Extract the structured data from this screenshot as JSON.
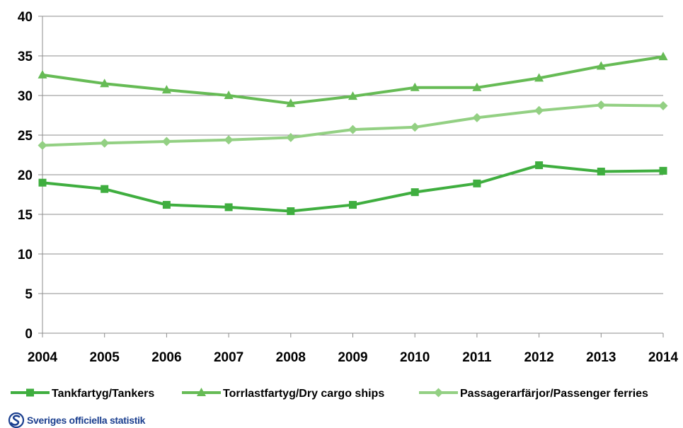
{
  "chart_data": {
    "type": "line",
    "categories": [
      "2004",
      "2005",
      "2006",
      "2007",
      "2008",
      "2009",
      "2010",
      "2011",
      "2012",
      "2013",
      "2014"
    ],
    "ylim": [
      0,
      40
    ],
    "yticks": [
      "0",
      "5",
      "10",
      "15",
      "20",
      "25",
      "30",
      "35",
      "40"
    ],
    "grid": true,
    "legend_position": "bottom",
    "series": [
      {
        "name": "Tankfartyg/Tankers",
        "color": "#3fae3f",
        "marker": "square",
        "values": [
          19.0,
          18.2,
          16.2,
          15.9,
          15.4,
          16.2,
          17.8,
          18.9,
          21.2,
          20.4,
          20.5
        ]
      },
      {
        "name": "Torrlastfartyg/Dry cargo ships",
        "color": "#66bb55",
        "marker": "triangle",
        "values": [
          32.6,
          31.5,
          30.7,
          30.0,
          29.0,
          29.9,
          31.0,
          31.0,
          32.2,
          33.7,
          34.9
        ]
      },
      {
        "name": "Passagerarfärjor/Passenger ferries",
        "color": "#93d083",
        "marker": "diamond",
        "values": [
          23.7,
          24.0,
          24.2,
          24.4,
          24.7,
          25.7,
          26.0,
          27.2,
          28.1,
          28.8,
          28.7
        ]
      }
    ]
  },
  "logo": {
    "text": "Sveriges officiella statistik"
  }
}
